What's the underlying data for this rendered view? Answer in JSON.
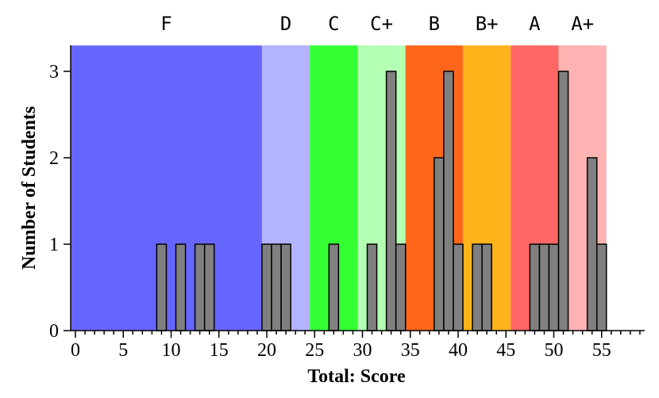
{
  "chart_data": {
    "type": "bar",
    "xlabel": "Total: Score",
    "ylabel": "Number of Students",
    "xlim": [
      -0.5,
      59.5
    ],
    "ylim": [
      0,
      3.3
    ],
    "x_ticks": [
      0,
      5,
      10,
      15,
      20,
      25,
      30,
      35,
      40,
      45,
      50,
      55
    ],
    "y_ticks": [
      0,
      1,
      2,
      3
    ],
    "bars": [
      {
        "x": 9,
        "value": 1
      },
      {
        "x": 11,
        "value": 1
      },
      {
        "x": 13,
        "value": 1
      },
      {
        "x": 14,
        "value": 1
      },
      {
        "x": 20,
        "value": 1
      },
      {
        "x": 21,
        "value": 1
      },
      {
        "x": 22,
        "value": 1
      },
      {
        "x": 27,
        "value": 1
      },
      {
        "x": 31,
        "value": 1
      },
      {
        "x": 33,
        "value": 3
      },
      {
        "x": 34,
        "value": 1
      },
      {
        "x": 38,
        "value": 2
      },
      {
        "x": 39,
        "value": 3
      },
      {
        "x": 40,
        "value": 1
      },
      {
        "x": 42,
        "value": 1
      },
      {
        "x": 43,
        "value": 1
      },
      {
        "x": 48,
        "value": 1
      },
      {
        "x": 49,
        "value": 1
      },
      {
        "x": 50,
        "value": 1
      },
      {
        "x": 51,
        "value": 3
      },
      {
        "x": 54,
        "value": 2
      },
      {
        "x": 55,
        "value": 1
      }
    ],
    "grade_bands": [
      {
        "label": "F",
        "from": -0.5,
        "to": 19.5,
        "color": "#6666ff"
      },
      {
        "label": "D",
        "from": 19.5,
        "to": 24.5,
        "color": "#b3b3ff"
      },
      {
        "label": "C",
        "from": 24.5,
        "to": 29.5,
        "color": "#33ff33"
      },
      {
        "label": "C+",
        "from": 29.5,
        "to": 34.5,
        "color": "#b3ffb3"
      },
      {
        "label": "B",
        "from": 34.5,
        "to": 40.5,
        "color": "#ff661a"
      },
      {
        "label": "B+",
        "from": 40.5,
        "to": 45.5,
        "color": "#ffb31a"
      },
      {
        "label": "A",
        "from": 45.5,
        "to": 50.5,
        "color": "#ff6666"
      },
      {
        "label": "A+",
        "from": 50.5,
        "to": 55.5,
        "color": "#ffb3b3"
      }
    ]
  }
}
